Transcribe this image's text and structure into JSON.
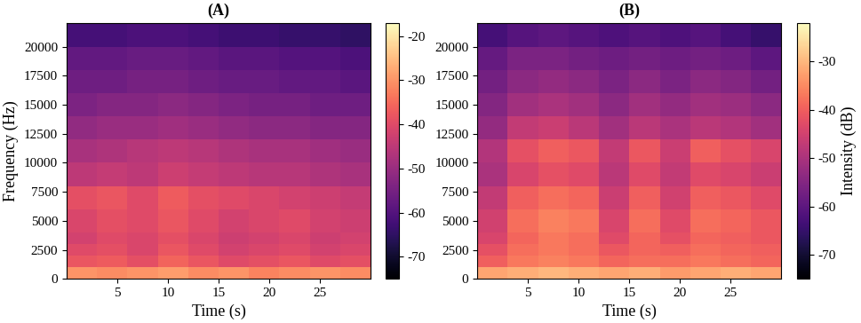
{
  "chart_data": [
    {
      "type": "heatmap",
      "title": "(A)",
      "x_label": "Time (s)",
      "y_label": "Frequency (Hz)",
      "xlim": [
        0,
        30
      ],
      "ylim": [
        0,
        22050
      ],
      "xticks": [
        5,
        10,
        15,
        20,
        25
      ],
      "yticks": [
        0,
        2500,
        5000,
        7500,
        10000,
        12500,
        15000,
        17500,
        20000
      ],
      "color": "magma",
      "x_edges": [
        0,
        3,
        6,
        9,
        12,
        15,
        18,
        21,
        24,
        27,
        30
      ],
      "y_edges": [
        0,
        1000,
        2000,
        3000,
        4000,
        6000,
        8000,
        10000,
        12000,
        14000,
        16000,
        18000,
        20000,
        22050
      ],
      "cells": [
        [
          -30,
          -31,
          -30,
          -29,
          -31,
          -30,
          -32,
          -31,
          -30,
          -31
        ],
        [
          -38,
          -37,
          -39,
          -36,
          -38,
          -40,
          -39,
          -38,
          -40,
          -39
        ],
        [
          -40,
          -39,
          -41,
          -38,
          -40,
          -42,
          -41,
          -40,
          -42,
          -41
        ],
        [
          -42,
          -40,
          -41,
          -39,
          -41,
          -43,
          -42,
          -41,
          -43,
          -42
        ],
        [
          -41,
          -39,
          -40,
          -38,
          -40,
          -42,
          -41,
          -40,
          -42,
          -43
        ],
        [
          -39,
          -38,
          -40,
          -37,
          -39,
          -40,
          -41,
          -42,
          -43,
          -44
        ],
        [
          -45,
          -44,
          -45,
          -43,
          -44,
          -45,
          -46,
          -46,
          -47,
          -48
        ],
        [
          -48,
          -47,
          -46,
          -45,
          -46,
          -47,
          -48,
          -48,
          -49,
          -50
        ],
        [
          -51,
          -50,
          -50,
          -49,
          -50,
          -51,
          -52,
          -52,
          -53,
          -53
        ],
        [
          -54,
          -53,
          -53,
          -52,
          -53,
          -54,
          -55,
          -55,
          -56,
          -56
        ],
        [
          -56,
          -56,
          -55,
          -55,
          -56,
          -57,
          -57,
          -58,
          -58,
          -59
        ],
        [
          -58,
          -58,
          -57,
          -57,
          -58,
          -59,
          -59,
          -60,
          -60,
          -61
        ],
        [
          -62,
          -62,
          -61,
          -61,
          -62,
          -63,
          -63,
          -64,
          -64,
          -65
        ]
      ],
      "colorbar": {
        "range": [
          -75,
          -17
        ],
        "ticks": [
          -70,
          -60,
          -50,
          -40,
          -30,
          -20
        ]
      }
    },
    {
      "type": "heatmap",
      "title": "(B)",
      "x_label": "Time (s)",
      "xlim": [
        0,
        30
      ],
      "ylim": [
        0,
        22050
      ],
      "xticks": [
        5,
        10,
        15,
        20,
        25
      ],
      "yticks": [
        0,
        2500,
        5000,
        7500,
        10000,
        12500,
        15000,
        17500,
        20000
      ],
      "color": "magma",
      "x_edges": [
        0,
        3,
        6,
        9,
        12,
        15,
        18,
        21,
        24,
        27,
        30
      ],
      "y_edges": [
        0,
        1000,
        2000,
        3000,
        4000,
        6000,
        8000,
        10000,
        12000,
        14000,
        16000,
        18000,
        20000,
        22050
      ],
      "cells": [
        [
          -32,
          -31,
          -30,
          -31,
          -32,
          -31,
          -33,
          -32,
          -31,
          -32
        ],
        [
          -40,
          -37,
          -36,
          -37,
          -39,
          -38,
          -38,
          -37,
          -38,
          -39
        ],
        [
          -42,
          -38,
          -37,
          -38,
          -41,
          -39,
          -40,
          -38,
          -39,
          -40
        ],
        [
          -44,
          -39,
          -37,
          -38,
          -43,
          -39,
          -42,
          -39,
          -40,
          -41
        ],
        [
          -45,
          -38,
          -36,
          -37,
          -44,
          -38,
          -43,
          -38,
          -39,
          -41
        ],
        [
          -47,
          -40,
          -38,
          -39,
          -46,
          -40,
          -45,
          -40,
          -41,
          -43
        ],
        [
          -50,
          -44,
          -42,
          -43,
          -48,
          -43,
          -47,
          -43,
          -44,
          -46
        ],
        [
          -49,
          -42,
          -40,
          -41,
          -47,
          -41,
          -46,
          -40,
          -42,
          -44
        ],
        [
          -53,
          -47,
          -46,
          -48,
          -51,
          -48,
          -50,
          -48,
          -49,
          -51
        ],
        [
          -55,
          -51,
          -50,
          -51,
          -54,
          -51,
          -53,
          -51,
          -52,
          -54
        ],
        [
          -57,
          -54,
          -53,
          -54,
          -56,
          -54,
          -56,
          -54,
          -55,
          -57
        ],
        [
          -59,
          -56,
          -56,
          -57,
          -58,
          -57,
          -58,
          -57,
          -58,
          -60
        ],
        [
          -63,
          -61,
          -60,
          -61,
          -62,
          -61,
          -62,
          -61,
          -63,
          -65
        ]
      ],
      "colorbar": {
        "range": [
          -75,
          -22
        ],
        "ticks": [
          -70,
          -60,
          -50,
          -40,
          -30
        ],
        "label": "Intensity (dB)"
      }
    }
  ]
}
